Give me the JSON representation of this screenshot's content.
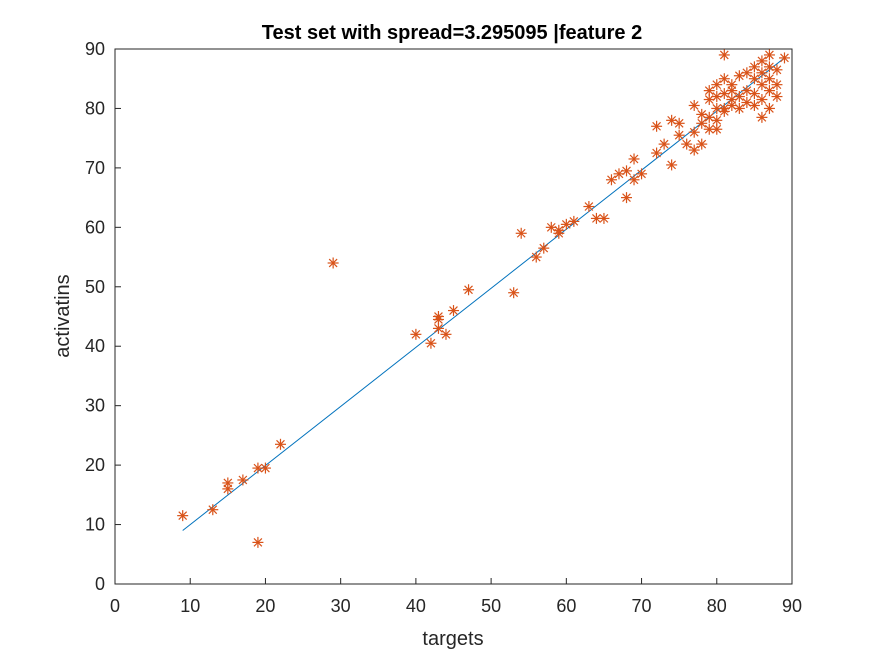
{
  "chart_data": {
    "type": "scatter",
    "title": "Test set with spread=3.295095 |feature 2",
    "xlabel": "targets",
    "ylabel": "activatins",
    "xlim": [
      0,
      90
    ],
    "ylim": [
      0,
      90
    ],
    "xticks": [
      0,
      10,
      20,
      30,
      40,
      50,
      60,
      70,
      80,
      90
    ],
    "yticks": [
      0,
      10,
      20,
      30,
      40,
      50,
      60,
      70,
      80,
      90
    ],
    "grid": false,
    "series": [
      {
        "name": "points",
        "marker": "asterisk",
        "color": "#D95319",
        "points": [
          [
            9,
            11.5
          ],
          [
            13,
            12.5
          ],
          [
            15,
            16
          ],
          [
            15,
            17
          ],
          [
            17,
            17.5
          ],
          [
            19,
            7
          ],
          [
            19,
            19.5
          ],
          [
            20,
            19.5
          ],
          [
            22,
            23.5
          ],
          [
            29,
            54
          ],
          [
            40,
            42
          ],
          [
            42,
            40.5
          ],
          [
            43,
            44.5
          ],
          [
            43,
            43
          ],
          [
            43,
            45
          ],
          [
            44,
            42
          ],
          [
            45,
            46
          ],
          [
            47,
            49.5
          ],
          [
            53,
            49
          ],
          [
            54,
            59
          ],
          [
            56,
            55
          ],
          [
            57,
            56.5
          ],
          [
            58,
            60
          ],
          [
            59,
            59.5
          ],
          [
            59,
            59
          ],
          [
            60,
            60.5
          ],
          [
            61,
            61
          ],
          [
            63,
            63.5
          ],
          [
            64,
            61.5
          ],
          [
            65,
            61.5
          ],
          [
            66,
            68
          ],
          [
            67,
            69
          ],
          [
            68,
            69.5
          ],
          [
            68,
            65
          ],
          [
            69,
            68
          ],
          [
            69,
            71.5
          ],
          [
            70,
            69
          ],
          [
            72,
            77
          ],
          [
            72,
            72.5
          ],
          [
            73,
            74
          ],
          [
            74,
            70.5
          ],
          [
            74,
            78
          ],
          [
            75,
            77.5
          ],
          [
            75,
            75.5
          ],
          [
            76,
            74
          ],
          [
            77,
            73
          ],
          [
            77,
            80.5
          ],
          [
            77,
            76
          ],
          [
            78,
            77.5
          ],
          [
            78,
            74
          ],
          [
            78,
            79
          ],
          [
            79,
            78.5
          ],
          [
            79,
            81.5
          ],
          [
            79,
            83
          ],
          [
            79,
            76.5
          ],
          [
            80,
            82
          ],
          [
            80,
            84
          ],
          [
            80,
            78
          ],
          [
            80,
            76.5
          ],
          [
            80,
            80
          ],
          [
            81,
            89
          ],
          [
            81,
            85
          ],
          [
            81,
            82.5
          ],
          [
            81,
            80
          ],
          [
            81,
            79.5
          ],
          [
            82,
            84
          ],
          [
            82,
            81.5
          ],
          [
            82,
            83
          ],
          [
            82,
            80.5
          ],
          [
            83,
            85.5
          ],
          [
            83,
            82
          ],
          [
            83,
            80
          ],
          [
            84,
            86
          ],
          [
            84,
            83
          ],
          [
            84,
            81
          ],
          [
            85,
            87
          ],
          [
            85,
            85
          ],
          [
            85,
            82.5
          ],
          [
            85,
            80.5
          ],
          [
            86,
            88
          ],
          [
            86,
            86
          ],
          [
            86,
            84
          ],
          [
            86,
            78.5
          ],
          [
            86,
            81.5
          ],
          [
            87,
            89
          ],
          [
            87,
            87
          ],
          [
            87,
            85
          ],
          [
            87,
            83
          ],
          [
            87,
            80
          ],
          [
            88,
            86.5
          ],
          [
            88,
            84
          ],
          [
            88,
            82
          ],
          [
            89,
            88.5
          ]
        ]
      }
    ],
    "fit_line": {
      "color": "#0072BD",
      "from": [
        9,
        9
      ],
      "to": [
        89,
        88.5
      ]
    }
  }
}
